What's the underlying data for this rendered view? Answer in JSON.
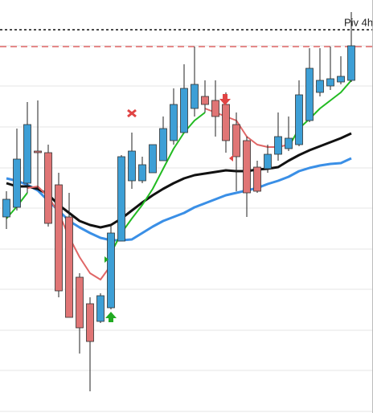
{
  "chart_data": {
    "type": "candlestick",
    "open": [
      244,
      256,
      286,
      326,
      324,
      284,
      244,
      169,
      136,
      114,
      131,
      214,
      289,
      289,
      299,
      314,
      339,
      349,
      379,
      394,
      389,
      384,
      359,
      339,
      306,
      304,
      322,
      329,
      334,
      364,
      399,
      407,
      412,
      414
    ],
    "high": [
      276,
      354,
      387,
      389,
      334,
      299,
      274,
      174,
      144,
      149,
      234,
      321,
      349,
      319,
      334,
      369,
      404,
      434,
      456,
      414,
      414,
      399,
      374,
      344,
      314,
      334,
      374,
      369,
      414,
      454,
      454,
      456,
      444,
      499
    ],
    "low": [
      229,
      252,
      274,
      279,
      232,
      144,
      119,
      74,
      27,
      112,
      129,
      214,
      279,
      286,
      299,
      314,
      334,
      349,
      369,
      374,
      344,
      324,
      276,
      244,
      274,
      299,
      314,
      326,
      332,
      362,
      394,
      402,
      409,
      412
    ],
    "close": [
      266,
      316,
      359,
      324,
      236,
      152,
      119,
      106,
      89,
      146,
      224,
      319,
      326,
      309,
      334,
      354,
      384,
      404,
      409,
      384,
      369,
      339,
      319,
      274,
      276,
      322,
      344,
      342,
      396,
      429,
      414,
      416,
      419,
      457
    ],
    "up_color": "#3d9fd6",
    "down_color": "#e07575",
    "overlays": [
      {
        "color": "#3a8fe6",
        "values": [
          292,
          289,
          284,
          277,
          264,
          252,
          239,
          231,
          224,
          218,
          215,
          215,
          216,
          224,
          232,
          239,
          244,
          249,
          256,
          261,
          266,
          271,
          274,
          277,
          280,
          285,
          289,
          294,
          301,
          305,
          308,
          310,
          311,
          317
        ]
      },
      {
        "color": "#111111",
        "values": [
          286,
          282,
          282,
          279,
          272,
          259,
          249,
          239,
          234,
          231,
          234,
          242,
          252,
          262,
          271,
          279,
          286,
          292,
          296,
          298,
          300,
          302,
          301,
          301,
          303,
          304,
          306,
          314,
          321,
          327,
          332,
          337,
          342,
          348
        ]
      },
      {
        "color": "#e06666",
        "values": [
          null,
          null,
          280,
          282,
          269,
          249,
          219,
          194,
          174,
          166,
          184,
          null,
          null,
          null,
          null,
          null,
          null,
          null,
          null,
          379,
          374,
          369,
          364,
          344,
          334,
          331,
          331,
          334,
          null,
          null,
          null,
          null,
          null,
          null
        ]
      },
      {
        "color": "#22bb22",
        "values": [
          242,
          257,
          274,
          null,
          null,
          null,
          null,
          null,
          null,
          null,
          199,
          224,
          242,
          259,
          279,
          304,
          329,
          349,
          364,
          374,
          null,
          null,
          null,
          null,
          null,
          null,
          null,
          331,
          354,
          366,
          379,
          389,
          399,
          414
        ]
      }
    ],
    "ref_lines": [
      {
        "value": 477,
        "color": "#111111",
        "style": "dotted",
        "label": "Piv 4h"
      },
      {
        "value": 456,
        "color": "#e06666",
        "style": "dashed"
      }
    ],
    "ylim": [
      0,
      514
    ],
    "yticks": [
      457,
      407,
      356,
      305,
      255,
      204,
      154,
      103,
      53,
      2
    ],
    "grid": true
  }
}
